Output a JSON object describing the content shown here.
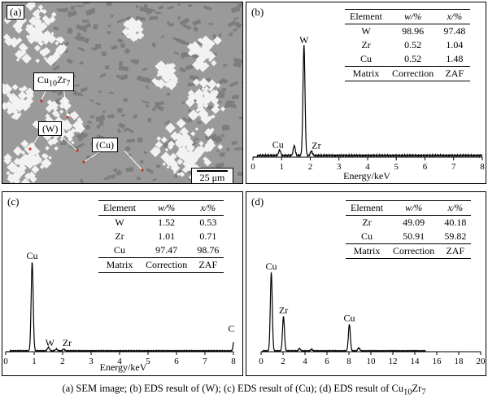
{
  "panel_a": {
    "label": "(a)",
    "callouts": [
      {
        "id": "cuzr",
        "text": "Cu10Zr7",
        "base": "Cu",
        "sub1": "10",
        "mid": "Zr",
        "sub2": "7"
      },
      {
        "id": "w",
        "text": "(W)"
      },
      {
        "id": "cu",
        "text": "(Cu)"
      }
    ],
    "scale_bar": "25 μm",
    "colors": {
      "matrix": "#9a9a9a",
      "particles": "#f2f2f2",
      "dark_phase": "#7d7d7d"
    }
  },
  "panel_b": {
    "label": "(b)",
    "table": {
      "headers": [
        "Element",
        "w/%",
        "x/%"
      ],
      "rows": [
        [
          "W",
          "98.96",
          "97.48"
        ],
        [
          "Zr",
          "0.52",
          "1.04"
        ],
        [
          "Cu",
          "0.52",
          "1.48"
        ]
      ],
      "footer": [
        "Matrix",
        "Correction",
        "ZAF"
      ]
    }
  },
  "panel_c": {
    "label": "(c)",
    "table": {
      "headers": [
        "Element",
        "w/%",
        "x/%"
      ],
      "rows": [
        [
          "W",
          "1.52",
          "0.53"
        ],
        [
          "Zr",
          "1.01",
          "0.71"
        ],
        [
          "Cu",
          "97.47",
          "98.76"
        ]
      ],
      "footer": [
        "Matrix",
        "Correction",
        "ZAF"
      ]
    }
  },
  "panel_d": {
    "label": "(d)",
    "table": {
      "headers": [
        "Element",
        "w/%",
        "x/%"
      ],
      "rows": [
        [
          "Zr",
          "49.09",
          "40.18"
        ],
        [
          "Cu",
          "50.91",
          "59.82"
        ]
      ],
      "footer": [
        "Matrix",
        "Correction",
        "ZAF"
      ]
    }
  },
  "chart_data": [
    {
      "id": "b",
      "type": "line",
      "xlabel": "Energy/keV",
      "xlim": [
        0,
        8
      ],
      "xticks": [
        0,
        1,
        2,
        3,
        4,
        5,
        6,
        7,
        8
      ],
      "ylim": [
        0,
        100
      ],
      "peaks": [
        {
          "x": 0.93,
          "y": 5,
          "label": "Cu"
        },
        {
          "x": 1.44,
          "y": 9,
          "label": ""
        },
        {
          "x": 1.78,
          "y": 100,
          "label": "W"
        },
        {
          "x": 2.04,
          "y": 4,
          "label": "Zr"
        }
      ],
      "baseline": 1.5
    },
    {
      "id": "c",
      "type": "line",
      "xlabel": "Energy/keV",
      "xlim": [
        0,
        8
      ],
      "xticks": [
        0,
        1,
        2,
        3,
        4,
        5,
        6,
        7,
        8
      ],
      "ylim": [
        0,
        100
      ],
      "peaks": [
        {
          "x": 0.93,
          "y": 100,
          "label": "Cu"
        },
        {
          "x": 1.5,
          "y": 4,
          "label": ""
        },
        {
          "x": 1.78,
          "y": 2,
          "label": "W"
        },
        {
          "x": 2.04,
          "y": 2,
          "label": "Zr"
        },
        {
          "x": 8.04,
          "y": 18,
          "label": "C"
        }
      ],
      "baseline": 1.0
    },
    {
      "id": "d",
      "type": "line",
      "xlabel": "",
      "xlim": [
        0,
        20
      ],
      "xticks": [
        0,
        2,
        4,
        6,
        8,
        10,
        12,
        14,
        16,
        18,
        20
      ],
      "ylim": [
        0,
        100
      ],
      "peaks": [
        {
          "x": 0.93,
          "y": 100,
          "label": "Cu"
        },
        {
          "x": 2.04,
          "y": 44,
          "label": "Zr"
        },
        {
          "x": 8.04,
          "y": 34,
          "label": "Cu"
        },
        {
          "x": 3.5,
          "y": 3,
          "label": ""
        },
        {
          "x": 4.6,
          "y": 2,
          "label": ""
        },
        {
          "x": 8.9,
          "y": 4,
          "label": ""
        }
      ],
      "baseline": 1.0,
      "data_end": 15
    }
  ],
  "caption": "(a) SEM image; (b) EDS result of (W); (c) EDS result of  (Cu); (d) EDS result of Cu10Zr7",
  "caption_parts": {
    "main": "(a) SEM image; (b) EDS result of (W); (c) EDS result of  (Cu); (d) EDS result of Cu",
    "sub1": "10",
    "mid": "Zr",
    "sub2": "7"
  }
}
